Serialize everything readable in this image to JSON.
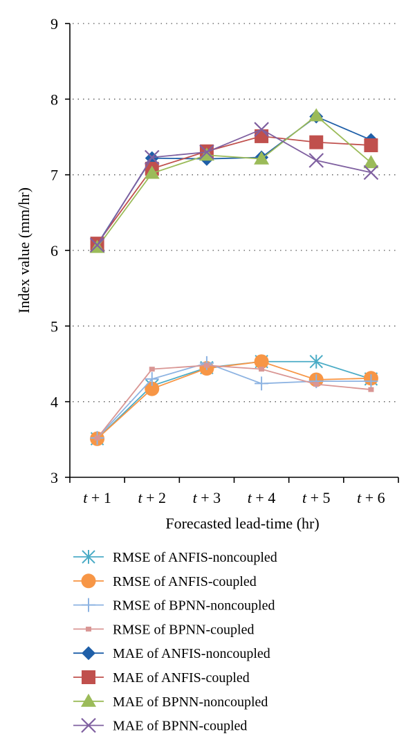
{
  "chart_data": {
    "type": "line",
    "xlabel": "Forecasted lead-time (hr)",
    "ylabel": "Index value (mm/hr)",
    "ylim": [
      3,
      9
    ],
    "yticks": [
      "3",
      "4",
      "5",
      "6",
      "7",
      "8",
      "9"
    ],
    "grid": "horizontal dotted",
    "legend_position": "bottom",
    "categories": [
      {
        "var": "t",
        "rest": " + 1"
      },
      {
        "var": "t",
        "rest": " + 2"
      },
      {
        "var": "t",
        "rest": " + 3"
      },
      {
        "var": "t",
        "rest": " + 4"
      },
      {
        "var": "t",
        "rest": " + 5"
      },
      {
        "var": "t",
        "rest": " + 6"
      }
    ],
    "series": [
      {
        "name": "RMSE of ANFIS-noncoupled",
        "color": "#4bacc6",
        "marker": "asterisk",
        "values": [
          3.51,
          4.21,
          4.45,
          4.53,
          4.53,
          4.3
        ]
      },
      {
        "name": "RMSE of ANFIS-coupled",
        "color": "#f79646",
        "marker": "circle",
        "values": [
          3.51,
          4.17,
          4.44,
          4.53,
          4.29,
          4.31
        ]
      },
      {
        "name": "RMSE of BPNN-noncoupled",
        "color": "#8db3e2",
        "marker": "plus",
        "values": [
          3.52,
          4.3,
          4.51,
          4.24,
          4.27,
          4.27
        ]
      },
      {
        "name": "RMSE of BPNN-coupled",
        "color": "#d99694",
        "marker": "small-square",
        "values": [
          3.52,
          4.43,
          4.48,
          4.43,
          4.23,
          4.16
        ]
      },
      {
        "name": "MAE of ANFIS-noncoupled",
        "color": "#1f5fa8",
        "marker": "diamond",
        "values": [
          6.08,
          7.22,
          7.21,
          7.23,
          7.77,
          7.46
        ]
      },
      {
        "name": "MAE of ANFIS-coupled",
        "color": "#c0504d",
        "marker": "square",
        "values": [
          6.09,
          7.08,
          7.31,
          7.51,
          7.43,
          7.39
        ]
      },
      {
        "name": "MAE of BPNN-noncoupled",
        "color": "#9bbb59",
        "marker": "triangle",
        "values": [
          6.04,
          7.02,
          7.26,
          7.21,
          7.78,
          7.16
        ]
      },
      {
        "name": "MAE of BPNN-coupled",
        "color": "#7f60a0",
        "marker": "x",
        "values": [
          6.07,
          7.23,
          7.3,
          7.6,
          7.19,
          7.03
        ]
      }
    ]
  }
}
